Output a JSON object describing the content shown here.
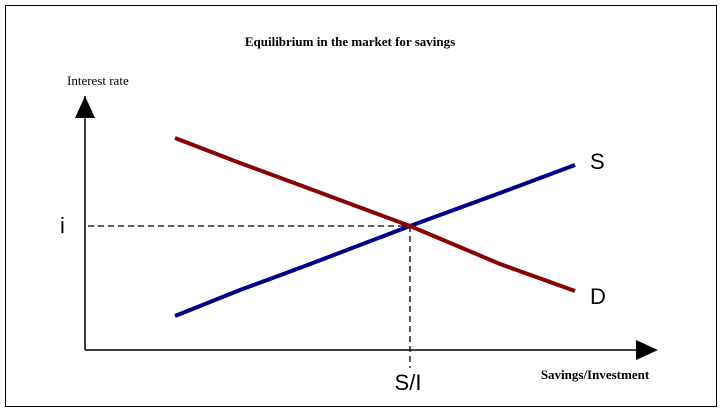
{
  "title": "Equilibrium in the market for savings",
  "y_axis_label": "Interest rate",
  "x_axis_label": "Savings/Investment",
  "equilibrium_rate_label": "i",
  "equilibrium_quantity_label": "S/I",
  "supply_label": "S",
  "demand_label": "D"
}
